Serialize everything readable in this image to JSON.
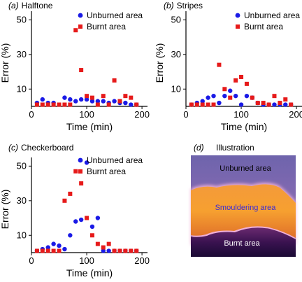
{
  "figure": {
    "colors": {
      "unburned": "#1a1ae6",
      "burnt": "#e61a1a",
      "axis": "#000000"
    },
    "illustration": {
      "letter": "(d)",
      "title": "Illustration",
      "label_top": "Unburned area",
      "label_middle": "Smouldering area",
      "label_bottom": "Burnt area",
      "colors": {
        "top": "#7a6ab4",
        "middle": "#f08a2a",
        "bottom": "#2a0f4a",
        "middle_text": "#3a2ad8",
        "light_text": "#000000",
        "dark_text": "#ffffff"
      }
    }
  },
  "chart_data": [
    {
      "type": "scatter",
      "letter": "(a)",
      "title": "Halftone",
      "xlabel": "Time (min)",
      "ylabel": "Error (%)",
      "xlim": [
        0,
        210
      ],
      "ylim": [
        0,
        55
      ],
      "xticks": [
        0,
        100,
        200
      ],
      "yticks": [
        10,
        30,
        50
      ],
      "legend_position": "top-right",
      "series": [
        {
          "name": "Unburned area",
          "marker": "circle",
          "x": [
            10,
            20,
            30,
            40,
            60,
            70,
            80,
            90,
            100,
            110,
            120,
            130,
            140,
            150,
            160,
            170,
            180,
            190
          ],
          "y": [
            2,
            4,
            2,
            2,
            5,
            4,
            3,
            4,
            4,
            3,
            3,
            3,
            2,
            3,
            2,
            2,
            1,
            1
          ]
        },
        {
          "name": "Burnt area",
          "marker": "square",
          "x": [
            10,
            20,
            30,
            40,
            50,
            60,
            70,
            80,
            90,
            100,
            110,
            120,
            130,
            140,
            150,
            160,
            170,
            180,
            190
          ],
          "y": [
            1,
            1,
            1,
            1,
            1,
            1,
            1,
            44,
            21,
            6,
            5,
            1,
            6,
            1,
            15,
            3,
            6,
            5,
            1
          ]
        }
      ]
    },
    {
      "type": "scatter",
      "letter": "(b)",
      "title": "Stripes",
      "xlabel": "Time (min)",
      "ylabel": "Error (%)",
      "xlim": [
        0,
        210
      ],
      "ylim": [
        0,
        55
      ],
      "xticks": [
        0,
        100,
        200
      ],
      "yticks": [
        10,
        30,
        50
      ],
      "legend_position": "top-right",
      "series": [
        {
          "name": "Unburned area",
          "marker": "circle",
          "x": [
            10,
            20,
            30,
            40,
            50,
            60,
            70,
            80,
            90,
            100,
            110,
            120,
            130,
            140,
            150,
            160,
            170,
            180,
            190
          ],
          "y": [
            1,
            2,
            3,
            5,
            6,
            2,
            6,
            9,
            6,
            1,
            6,
            5,
            2,
            1,
            1,
            1,
            1,
            1,
            1
          ]
        },
        {
          "name": "Burnt area",
          "marker": "square",
          "x": [
            10,
            20,
            30,
            40,
            50,
            60,
            70,
            80,
            90,
            100,
            110,
            120,
            130,
            140,
            150,
            160,
            170,
            180,
            190
          ],
          "y": [
            1,
            1,
            1,
            1,
            1,
            24,
            10,
            5,
            15,
            17,
            13,
            5,
            2,
            2,
            1,
            6,
            2,
            4,
            1
          ]
        }
      ]
    },
    {
      "type": "scatter",
      "letter": "(c)",
      "title": "Checkerboard",
      "xlabel": "Time (min)",
      "ylabel": "Error (%)",
      "xlim": [
        0,
        210
      ],
      "ylim": [
        0,
        55
      ],
      "xticks": [
        0,
        100,
        200
      ],
      "yticks": [
        10,
        30,
        50
      ],
      "legend_position": "top-right",
      "series": [
        {
          "name": "Unburned area",
          "marker": "circle",
          "x": [
            10,
            20,
            30,
            40,
            50,
            60,
            70,
            80,
            90,
            100,
            110,
            120,
            130,
            140,
            150,
            160,
            170,
            180,
            190
          ],
          "y": [
            1,
            2,
            3,
            5,
            4,
            2,
            10,
            18,
            19,
            52,
            15,
            20,
            1,
            1,
            1,
            1,
            1,
            1,
            1
          ]
        },
        {
          "name": "Burnt area",
          "marker": "square",
          "x": [
            10,
            20,
            30,
            40,
            50,
            60,
            70,
            80,
            90,
            100,
            110,
            120,
            130,
            140,
            150,
            160,
            170,
            180,
            190
          ],
          "y": [
            1,
            1,
            1,
            1,
            1,
            30,
            34,
            47,
            40,
            20,
            10,
            5,
            3,
            5,
            1,
            1,
            1,
            1,
            1
          ]
        }
      ]
    }
  ]
}
